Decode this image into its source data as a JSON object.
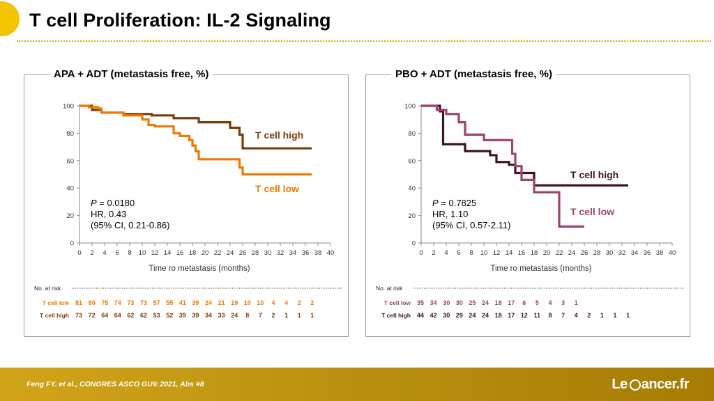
{
  "page": {
    "title": "T cell Proliferation: IL-2 Signaling",
    "footer": "Feng FY. et al., CONGRES ASCO GU® 2021, Abs #8",
    "logo_pre": "Le",
    "logo_post": "ancer.fr"
  },
  "chart_data": [
    {
      "type": "line",
      "title": "APA + ADT (metastasis free, %)",
      "xlabel": "Time ro metastasis (months)",
      "ylabel": "",
      "xlim": [
        0,
        40
      ],
      "ylim": [
        0,
        100
      ],
      "xticks": [
        0,
        2,
        4,
        6,
        8,
        10,
        12,
        14,
        16,
        18,
        20,
        22,
        24,
        26,
        28,
        30,
        32,
        34,
        36,
        38,
        40
      ],
      "yticks": [
        0,
        20,
        40,
        60,
        80,
        100
      ],
      "stats": [
        "P = 0.0180",
        "HR, 0.43",
        "(95% CI, 0.21-0.86)"
      ],
      "series": [
        {
          "name": "T cell high",
          "color": "#7a3c0a",
          "x": [
            0,
            2,
            3.5,
            7,
            11.5,
            15,
            19,
            24,
            25.5,
            26,
            37
          ],
          "y": [
            100,
            97,
            95,
            94,
            93,
            91,
            88,
            84,
            79,
            69,
            69
          ]
        },
        {
          "name": "T cell low",
          "color": "#f07800",
          "x": [
            0,
            1.5,
            3,
            3.5,
            7,
            10,
            11,
            12,
            15,
            16,
            17.5,
            18,
            18.5,
            19,
            25.5,
            26,
            37
          ],
          "y": [
            100,
            99,
            98,
            95,
            93,
            90,
            86,
            85,
            80,
            78,
            75,
            71,
            67,
            61,
            55,
            50,
            50
          ]
        }
      ],
      "risk_table": {
        "header": "No. at risk",
        "rows": [
          {
            "label": "T cell low",
            "color": "#f07800",
            "values": [
              "81",
              "80",
              "75",
              "74",
              "73",
              "73",
              "57",
              "55",
              "41",
              "39",
              "24",
              "21",
              "19",
              "10",
              "10",
              "4",
              "4",
              "2",
              "2"
            ]
          },
          {
            "label": "T cell high",
            "color": "#7a3c0a",
            "values": [
              "73",
              "72",
              "64",
              "64",
              "62",
              "62",
              "53",
              "52",
              "39",
              "39",
              "34",
              "33",
              "24",
              "8",
              "7",
              "2",
              "1",
              "1",
              "1"
            ]
          }
        ]
      }
    },
    {
      "type": "line",
      "title": "PBO + ADT (metastasis free, %)",
      "xlabel": "Time ro metastasis (months)",
      "ylabel": "",
      "xlim": [
        0,
        40
      ],
      "ylim": [
        0,
        100
      ],
      "xticks": [
        0,
        2,
        4,
        6,
        8,
        10,
        12,
        14,
        16,
        18,
        20,
        22,
        24,
        26,
        28,
        30,
        32,
        34,
        36,
        38,
        40
      ],
      "yticks": [
        0,
        20,
        40,
        60,
        80,
        100
      ],
      "stats": [
        "P = 0.7825",
        "HR, 1.10",
        "(95% CI, 0.57-2.11)"
      ],
      "series": [
        {
          "name": "T cell high",
          "color": "#3b1426",
          "x": [
            0,
            3,
            3.5,
            7,
            11,
            12,
            14,
            15,
            18,
            33
          ],
          "y": [
            100,
            96,
            72,
            67,
            64,
            59,
            57,
            51,
            42,
            42
          ]
        },
        {
          "name": "T cell low",
          "color": "#a0426e",
          "x": [
            0,
            2.5,
            4,
            6,
            7,
            10,
            14.5,
            15,
            16,
            18,
            22,
            26
          ],
          "y": [
            100,
            97,
            94,
            88,
            79,
            75,
            65,
            56,
            46,
            37,
            12,
            12
          ]
        }
      ],
      "risk_table": {
        "header": "No. at risk",
        "rows": [
          {
            "label": "T cell low",
            "color": "#a0426e",
            "values": [
              "35",
              "34",
              "30",
              "30",
              "25",
              "24",
              "18",
              "17",
              "6",
              "5",
              "4",
              "3",
              "1"
            ]
          },
          {
            "label": "T cell high",
            "color": "#3b1426",
            "values": [
              "44",
              "42",
              "30",
              "29",
              "24",
              "24",
              "18",
              "17",
              "12",
              "11",
              "8",
              "7",
              "4",
              "2",
              "1",
              "1",
              "1"
            ]
          }
        ]
      }
    }
  ]
}
